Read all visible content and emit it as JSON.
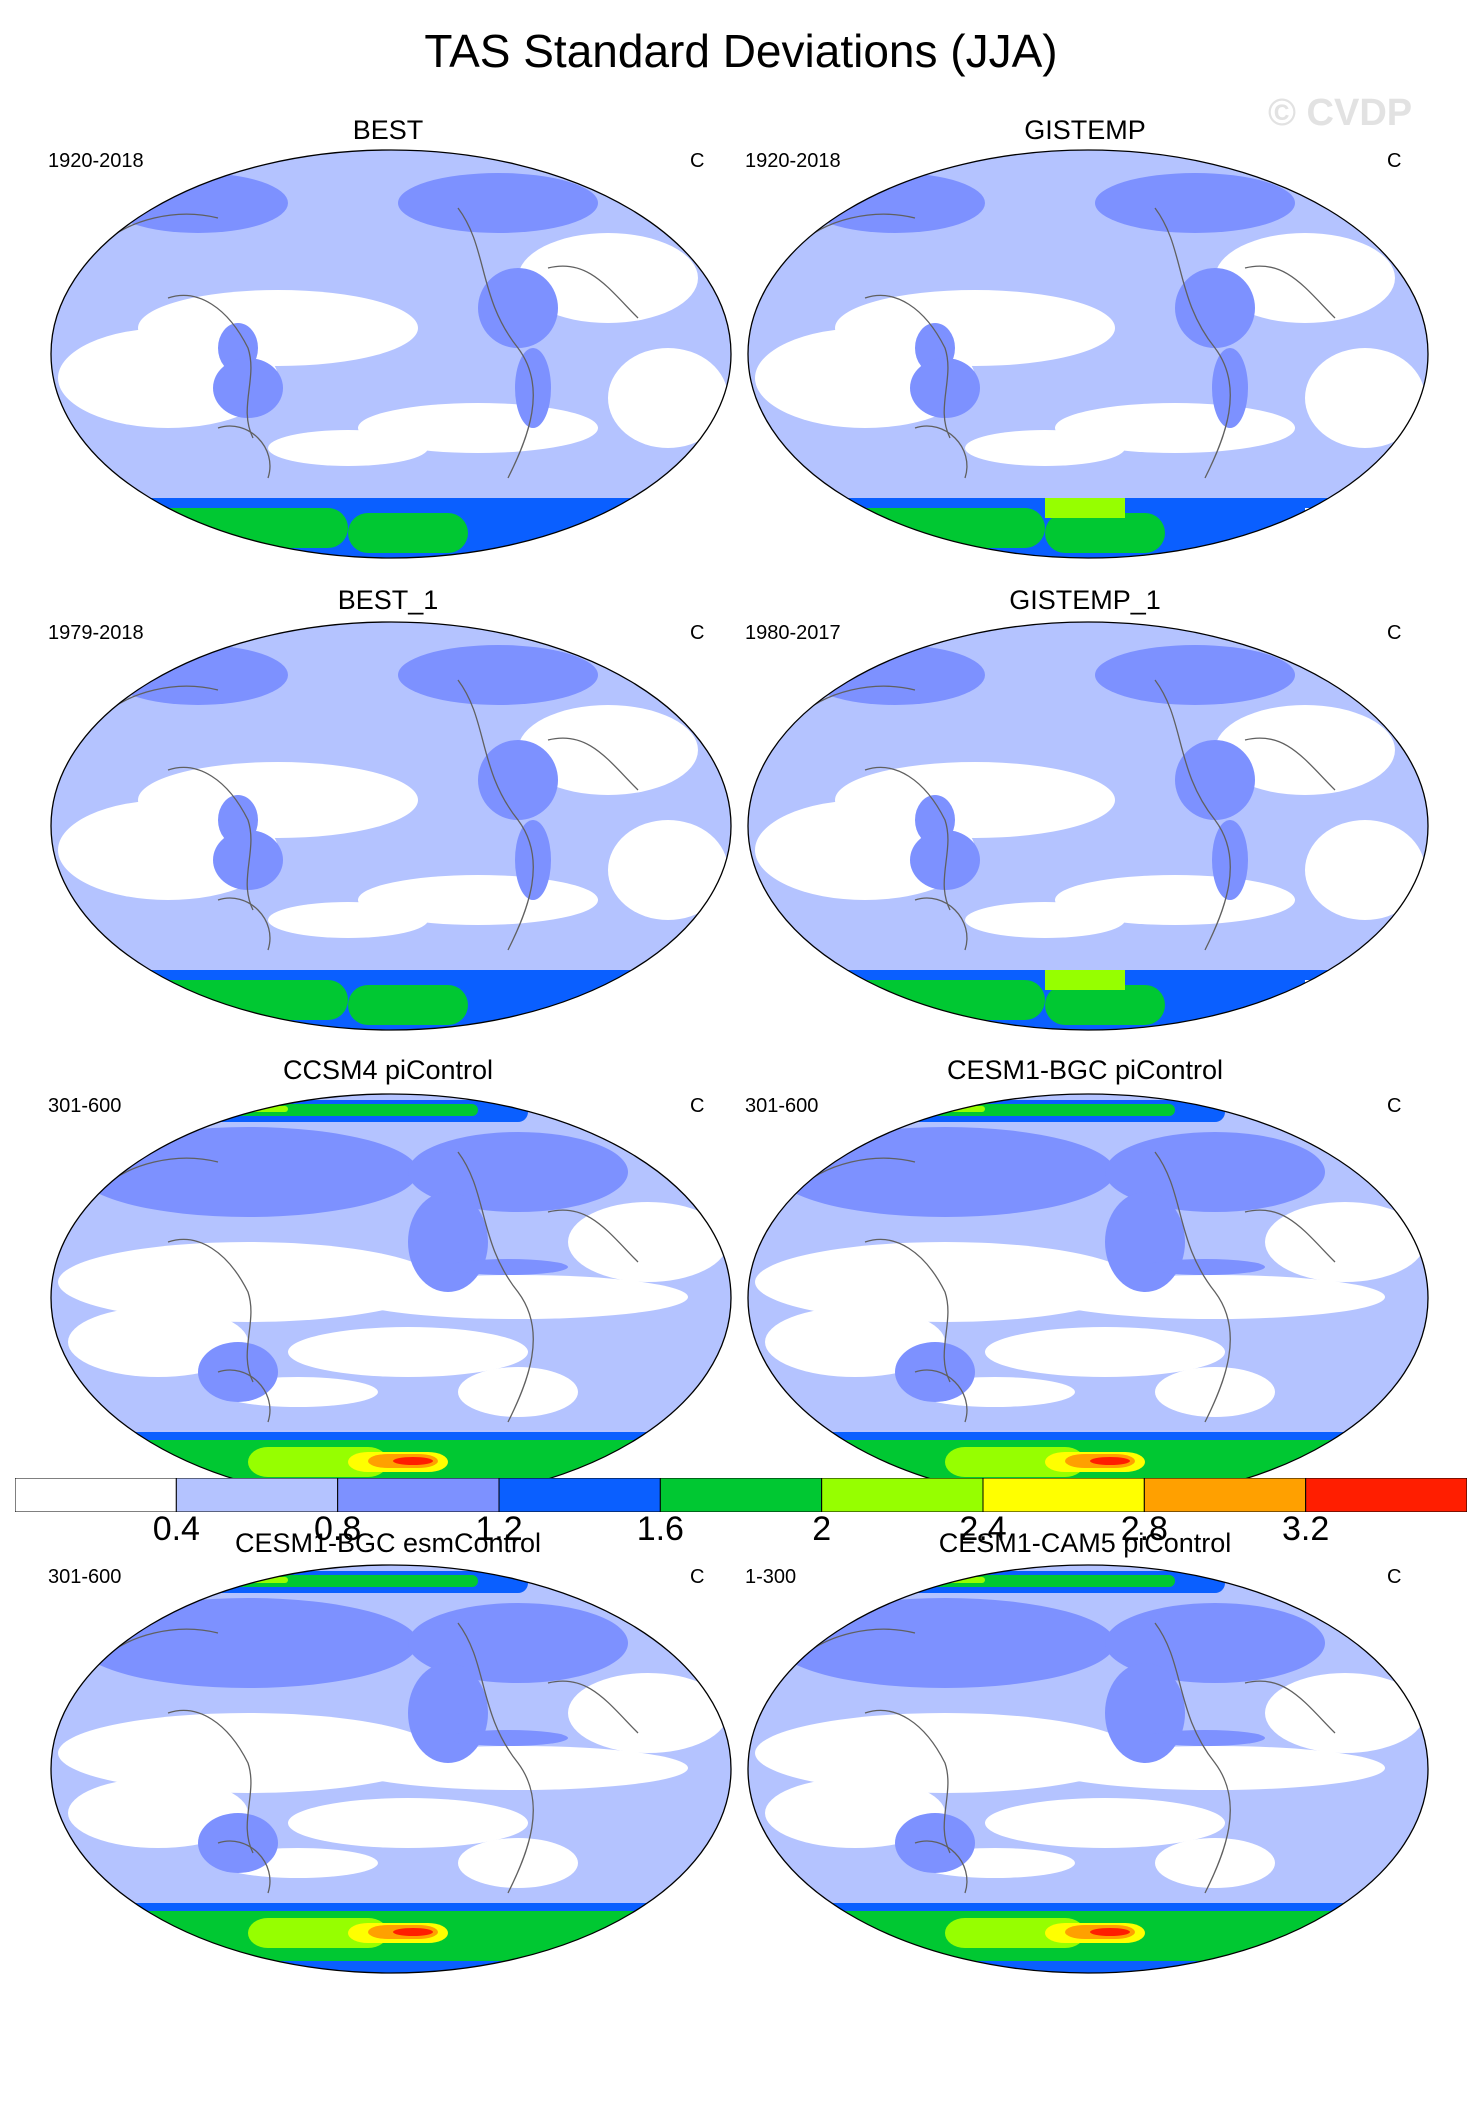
{
  "figure": {
    "title": "TAS Standard Deviations (JJA)",
    "watermark": "© CVDP"
  },
  "colors": {
    "levels": [
      "#ffffff",
      "#b4c3ff",
      "#7d91ff",
      "#0a5fff",
      "#00c832",
      "#96ff00",
      "#ffff00",
      "#ffa000",
      "#ff1e00"
    ],
    "coast": "#606060"
  },
  "colorbar": {
    "labels": [
      "0.4",
      "0.8",
      "1.2",
      "1.6",
      "2",
      "2.4",
      "2.8",
      "3.2"
    ]
  },
  "panels": [
    {
      "title": "BEST",
      "period": "1920-2018",
      "units": "C",
      "style": "obs"
    },
    {
      "title": "GISTEMP",
      "period": "1920-2018",
      "units": "C",
      "style": "obs-gis"
    },
    {
      "title": "BEST_1",
      "period": "1979-2018",
      "units": "C",
      "style": "obs"
    },
    {
      "title": "GISTEMP_1",
      "period": "1980-2017",
      "units": "C",
      "style": "obs-gis"
    },
    {
      "title": "CCSM4 piControl",
      "period": "301-600",
      "units": "C",
      "style": "model"
    },
    {
      "title": "CESM1-BGC piControl",
      "period": "301-600",
      "units": "C",
      "style": "model"
    },
    {
      "title": "CESM1-BGC esmControl",
      "period": "301-600",
      "units": "C",
      "style": "model"
    },
    {
      "title": "CESM1-CAM5 piControl",
      "period": "1-300",
      "units": "C",
      "style": "model"
    }
  ]
}
